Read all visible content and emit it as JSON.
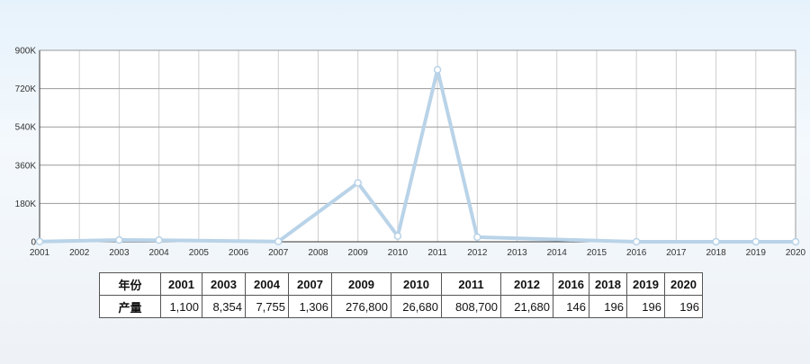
{
  "chart_data": {
    "type": "line",
    "x_categories": [
      "2001",
      "2002",
      "2003",
      "2004",
      "2005",
      "2006",
      "2007",
      "2008",
      "2009",
      "2010",
      "2011",
      "2012",
      "2013",
      "2014",
      "2015",
      "2016",
      "2017",
      "2018",
      "2019",
      "2020"
    ],
    "points": [
      {
        "x": "2001",
        "y": 1100
      },
      {
        "x": "2003",
        "y": 8354
      },
      {
        "x": "2004",
        "y": 7755
      },
      {
        "x": "2007",
        "y": 1306
      },
      {
        "x": "2009",
        "y": 276800
      },
      {
        "x": "2010",
        "y": 26680
      },
      {
        "x": "2011",
        "y": 808700
      },
      {
        "x": "2012",
        "y": 21680
      },
      {
        "x": "2016",
        "y": 146
      },
      {
        "x": "2018",
        "y": 196
      },
      {
        "x": "2019",
        "y": 196
      },
      {
        "x": "2020",
        "y": 196
      }
    ],
    "y_ticks": [
      {
        "value": 0,
        "label": "0"
      },
      {
        "value": 180000,
        "label": "180K"
      },
      {
        "value": 360000,
        "label": "360K"
      },
      {
        "value": 540000,
        "label": "540K"
      },
      {
        "value": 720000,
        "label": "720K"
      },
      {
        "value": 900000,
        "label": "900K"
      }
    ],
    "ylim": [
      0,
      900000
    ],
    "grid": true,
    "line_color": "#b9d3e8",
    "title": "",
    "xlabel": "",
    "ylabel": ""
  },
  "table": {
    "row_labels": {
      "year": "年份",
      "output": "产量"
    },
    "years": [
      "2001",
      "2003",
      "2004",
      "2007",
      "2009",
      "2010",
      "2011",
      "2012",
      "2016",
      "2018",
      "2019",
      "2020"
    ],
    "values": [
      "1,100",
      "8,354",
      "7,755",
      "1,306",
      "276,800",
      "26,680",
      "808,700",
      "21,680",
      "146",
      "196",
      "196",
      "196"
    ]
  }
}
